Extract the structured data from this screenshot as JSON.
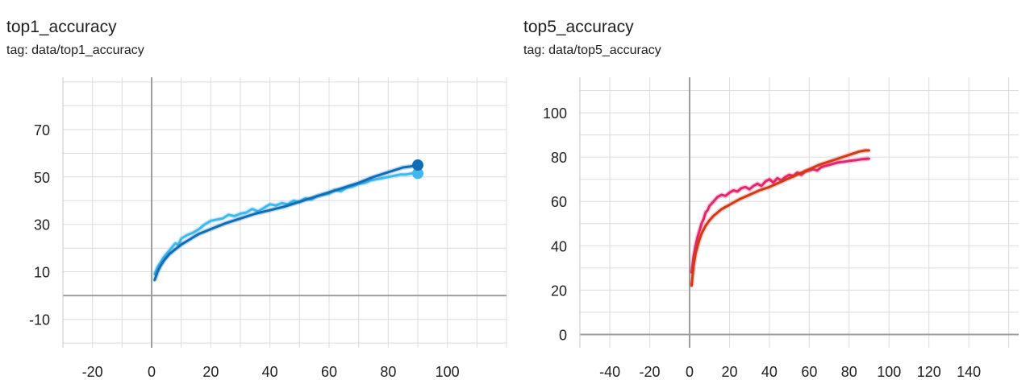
{
  "charts": [
    {
      "title": "top1_accuracy",
      "tag_label": "tag: data/top1_accuracy"
    },
    {
      "title": "top5_accuracy",
      "tag_label": "tag: data/top5_accuracy"
    }
  ],
  "chart_data": [
    {
      "type": "line",
      "title": "top1_accuracy",
      "xlabel": "",
      "ylabel": "",
      "xlim": [
        -30,
        120
      ],
      "ylim": [
        -22,
        92
      ],
      "x_ticks": [
        -20,
        0,
        20,
        40,
        60,
        80,
        100
      ],
      "x_tick_labels": [
        "-20",
        "0",
        "20",
        "40",
        "60",
        "80",
        "100"
      ],
      "y_ticks": [
        -10,
        10,
        30,
        50,
        70
      ],
      "y_tick_labels": [
        "-10",
        "10",
        "30",
        "50",
        "70"
      ],
      "grid": true,
      "series": [
        {
          "color": "#3fb8ed",
          "x": [
            1,
            2,
            3,
            4,
            5,
            6,
            7,
            8,
            9,
            10,
            12,
            14,
            16,
            18,
            20,
            22,
            24,
            26,
            28,
            30,
            32,
            34,
            36,
            38,
            40,
            42,
            44,
            46,
            48,
            50,
            52,
            54,
            56,
            58,
            60,
            62,
            64,
            66,
            68,
            70,
            72,
            74,
            76,
            78,
            80,
            82,
            84,
            86,
            88,
            90
          ],
          "values": [
            9,
            12,
            14,
            16,
            17.5,
            19,
            20.5,
            22,
            21.5,
            24,
            25.5,
            26.5,
            28,
            30,
            31.5,
            32,
            32.5,
            34,
            33.5,
            34.5,
            35,
            36.5,
            35.5,
            37,
            38.5,
            38,
            39,
            38.5,
            40,
            39.5,
            41,
            40.5,
            42,
            42.5,
            43,
            44.5,
            44,
            45.5,
            46,
            47,
            47.5,
            48.5,
            49,
            49.5,
            50,
            50.5,
            51,
            51,
            51.5,
            51.5
          ]
        },
        {
          "color": "#0f6db7",
          "x": [
            1,
            2,
            3,
            4,
            5,
            6,
            8,
            10,
            12,
            14,
            16,
            18,
            20,
            25,
            30,
            35,
            40,
            45,
            50,
            55,
            60,
            65,
            70,
            75,
            80,
            85,
            88,
            90
          ],
          "values": [
            6.5,
            10,
            12.5,
            14.5,
            16,
            17.5,
            19.5,
            21.5,
            23,
            24.5,
            26,
            27,
            28,
            30.5,
            32.5,
            34.5,
            36,
            37.5,
            39.5,
            41.5,
            43.5,
            45.5,
            47.5,
            50,
            52,
            54,
            54.5,
            55
          ]
        }
      ]
    },
    {
      "type": "line",
      "title": "top5_accuracy",
      "xlabel": "",
      "ylabel": "",
      "xlim": [
        -55,
        165
      ],
      "ylim": [
        -6,
        116
      ],
      "x_ticks": [
        -40,
        -20,
        0,
        20,
        40,
        60,
        80,
        100,
        120,
        140
      ],
      "x_tick_labels": [
        "-40",
        "-20",
        "0",
        "20",
        "40",
        "60",
        "80",
        "100",
        "120",
        "140"
      ],
      "y_ticks": [
        0,
        20,
        40,
        60,
        80,
        100
      ],
      "y_tick_labels": [
        "0",
        "20",
        "40",
        "60",
        "80",
        "100"
      ],
      "grid": true,
      "series": [
        {
          "color": "#e6256f",
          "x": [
            1,
            2,
            3,
            4,
            5,
            6,
            7,
            8,
            9,
            10,
            12,
            14,
            16,
            18,
            20,
            22,
            24,
            26,
            28,
            30,
            32,
            34,
            36,
            38,
            40,
            42,
            44,
            46,
            48,
            50,
            52,
            54,
            56,
            58,
            60,
            62,
            64,
            66,
            68,
            70,
            72,
            74,
            76,
            78,
            80,
            82,
            84,
            86,
            88,
            90
          ],
          "values": [
            28,
            35,
            40,
            44,
            47,
            50,
            52,
            55,
            56,
            58,
            60,
            62,
            63,
            62.5,
            64,
            65,
            64.5,
            66,
            66.5,
            65.5,
            67,
            68,
            67,
            69,
            70,
            68.5,
            70.5,
            69.5,
            71,
            72,
            71.5,
            73,
            72,
            73.5,
            74,
            74.5,
            74,
            75.5,
            76,
            76.5,
            77,
            77.5,
            77.8,
            78,
            78.3,
            78.5,
            78.7,
            79,
            79.2,
            79.3
          ]
        },
        {
          "color": "#d03a17",
          "x": [
            1,
            2,
            3,
            4,
            5,
            6,
            8,
            10,
            12,
            14,
            16,
            18,
            20,
            25,
            30,
            35,
            40,
            45,
            50,
            55,
            60,
            65,
            70,
            75,
            80,
            85,
            88,
            90
          ],
          "values": [
            22,
            31,
            36.5,
            40,
            43,
            45.5,
            49,
            51.5,
            53.5,
            55,
            56.5,
            57.5,
            58.5,
            61,
            63,
            65,
            66.5,
            68.5,
            70.5,
            72.5,
            74.5,
            76.5,
            78,
            79.5,
            81,
            82.5,
            83,
            83
          ]
        }
      ]
    }
  ]
}
